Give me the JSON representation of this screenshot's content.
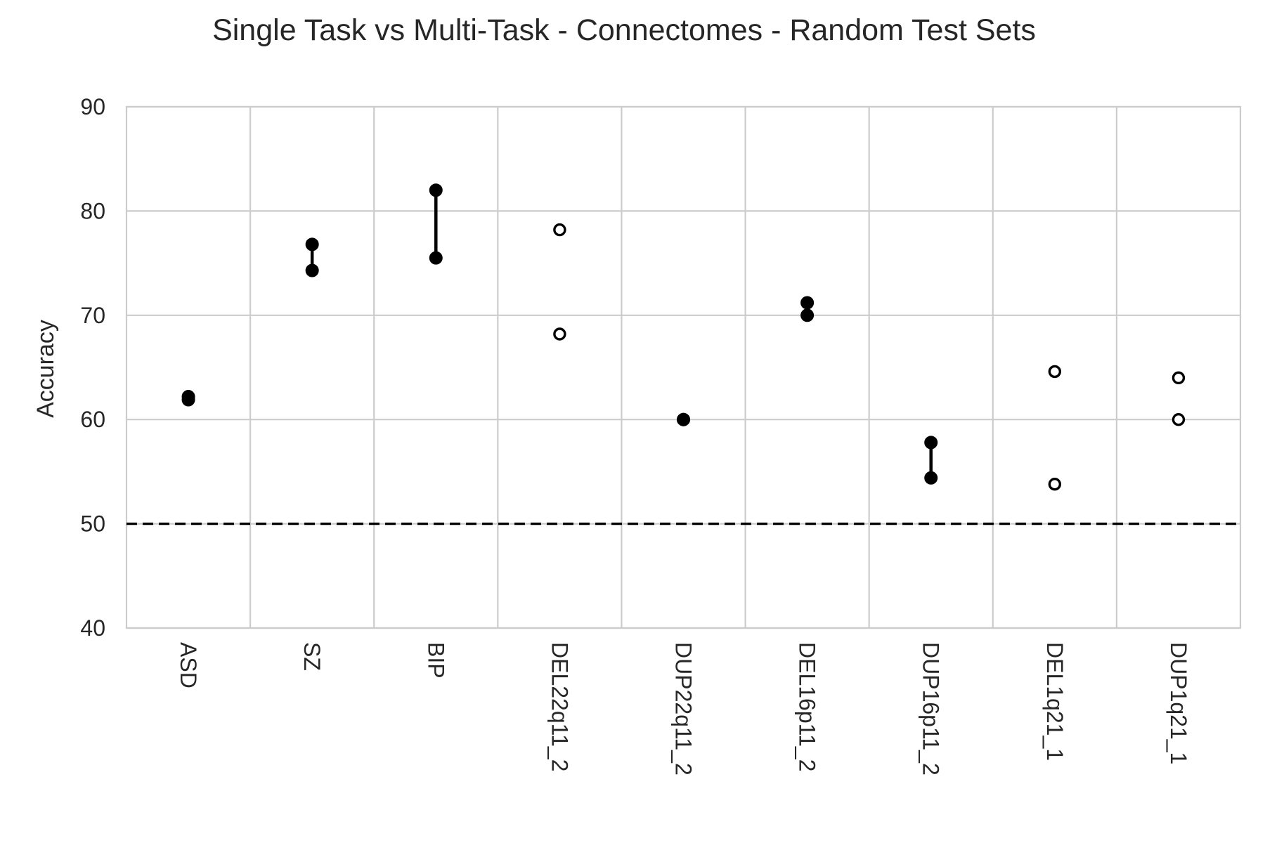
{
  "chart_data": {
    "type": "scatter",
    "title": "Single Task vs Multi-Task - Connectomes - Random Test Sets",
    "xlabel": "",
    "ylabel": "Accuracy",
    "ylim": [
      40,
      90
    ],
    "yticks": [
      40,
      50,
      60,
      70,
      80,
      90
    ],
    "categories": [
      "ASD",
      "SZ",
      "BIP",
      "DEL22q11_2",
      "DUP22q11_2",
      "DEL16p11_2",
      "DUP16p11_2",
      "DEL1q21_1",
      "DUP1q21_1"
    ],
    "pairs": [
      {
        "category": "ASD",
        "values": [
          62.2,
          61.9
        ],
        "marker": "filled",
        "connected": true
      },
      {
        "category": "SZ",
        "values": [
          76.8,
          74.3
        ],
        "marker": "filled",
        "connected": true
      },
      {
        "category": "BIP",
        "values": [
          82.0,
          75.5
        ],
        "marker": "filled",
        "connected": true
      },
      {
        "category": "DEL22q11_2",
        "values": [
          78.2,
          68.2
        ],
        "marker": "open",
        "connected": false
      },
      {
        "category": "DUP22q11_2",
        "values": [
          60.0,
          60.0
        ],
        "marker": "filled",
        "connected": true
      },
      {
        "category": "DEL16p11_2",
        "values": [
          71.2,
          70.0
        ],
        "marker": "filled",
        "connected": true
      },
      {
        "category": "DUP16p11_2",
        "values": [
          57.8,
          54.4
        ],
        "marker": "filled",
        "connected": true
      },
      {
        "category": "DEL1q21_1",
        "values": [
          64.6,
          53.8
        ],
        "marker": "open",
        "connected": false
      },
      {
        "category": "DUP1q21_1",
        "values": [
          64.0,
          60.0
        ],
        "marker": "open",
        "connected": false
      }
    ],
    "reference_line": {
      "y": 50,
      "style": "dashed",
      "color": "#000000"
    },
    "grid": true
  }
}
